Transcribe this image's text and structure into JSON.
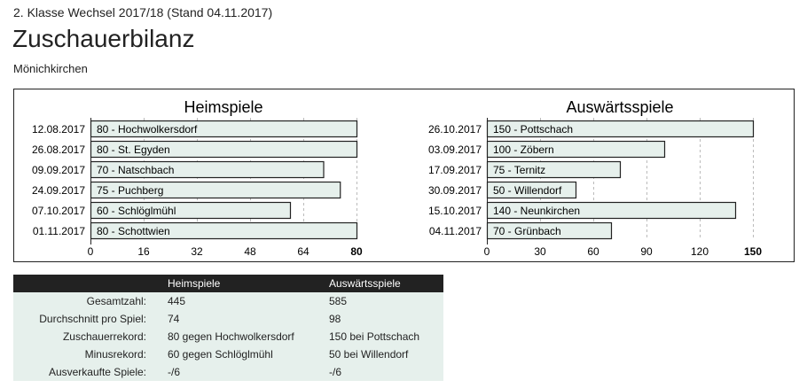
{
  "header": {
    "subtitle": "2. Klasse Wechsel 2017/18 (Stand 04.11.2017)",
    "title": "Zuschauerbilanz",
    "team": "Mönichkirchen"
  },
  "colors": {
    "bar_fill": "#e6f0ec",
    "bar_stroke": "#222222",
    "table_header": "#222222",
    "table_row": "#e6f0ec"
  },
  "chart_data": [
    {
      "type": "bar",
      "orientation": "horizontal",
      "title": "Heimspiele",
      "xlim": [
        0,
        80
      ],
      "ticks": [
        0,
        16,
        32,
        48,
        64,
        80
      ],
      "grid": "dashed vertical",
      "bars": [
        {
          "date": "12.08.2017",
          "value": 80,
          "team": "Hochwolkersdorf"
        },
        {
          "date": "26.08.2017",
          "value": 80,
          "team": "St. Egyden"
        },
        {
          "date": "09.09.2017",
          "value": 70,
          "team": "Natschbach"
        },
        {
          "date": "24.09.2017",
          "value": 75,
          "team": "Puchberg"
        },
        {
          "date": "07.10.2017",
          "value": 60,
          "team": "Schlöglmühl"
        },
        {
          "date": "01.11.2017",
          "value": 80,
          "team": "Schottwien"
        }
      ]
    },
    {
      "type": "bar",
      "orientation": "horizontal",
      "title": "Auswärtsspiele",
      "xlim": [
        0,
        150
      ],
      "ticks": [
        0,
        30,
        60,
        90,
        120,
        150
      ],
      "grid": "dashed vertical",
      "bars": [
        {
          "date": "26.10.2017",
          "value": 150,
          "team": "Pottschach"
        },
        {
          "date": "03.09.2017",
          "value": 100,
          "team": "Zöbern"
        },
        {
          "date": "17.09.2017",
          "value": 75,
          "team": "Ternitz"
        },
        {
          "date": "30.09.2017",
          "value": 50,
          "team": "Willendorf"
        },
        {
          "date": "15.10.2017",
          "value": 140,
          "team": "Neunkirchen"
        },
        {
          "date": "04.11.2017",
          "value": 70,
          "team": "Grünbach"
        }
      ]
    }
  ],
  "stats": {
    "headers": [
      "",
      "Heimspiele",
      "Auswärtsspiele"
    ],
    "rows": [
      [
        "Gesamtzahl:",
        "445",
        "585"
      ],
      [
        "Durchschnitt pro Spiel:",
        "74",
        "98"
      ],
      [
        "Zuschauerrekord:",
        "80 gegen Hochwolkersdorf",
        "150 bei Pottschach"
      ],
      [
        "Minusrekord:",
        "60 gegen Schlöglmühl",
        "50 bei Willendorf"
      ],
      [
        "Ausverkaufte Spiele:",
        "-/6",
        "-/6"
      ]
    ]
  }
}
